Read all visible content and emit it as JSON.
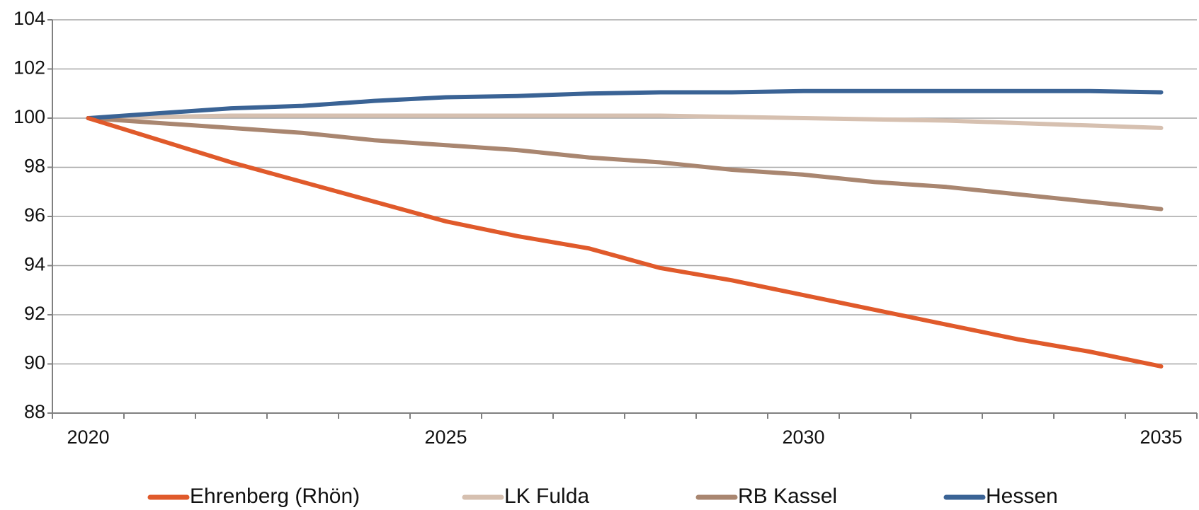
{
  "chart_data": {
    "type": "line",
    "x": [
      2020,
      2021,
      2022,
      2023,
      2024,
      2025,
      2026,
      2027,
      2028,
      2029,
      2030,
      2031,
      2032,
      2033,
      2034,
      2035
    ],
    "xlim": [
      2019.5,
      2035.5
    ],
    "xticks": [
      2020,
      2025,
      2030,
      2035
    ],
    "ylim": [
      88,
      104
    ],
    "yticks": [
      88,
      90,
      92,
      94,
      96,
      98,
      100,
      102,
      104
    ],
    "grid": true,
    "legend": "bottom",
    "series": [
      {
        "name": "Ehrenberg (Rhön)",
        "color": "#e05a2b",
        "values": [
          100,
          99.1,
          98.2,
          97.4,
          96.6,
          95.8,
          95.2,
          94.7,
          93.9,
          93.4,
          92.8,
          92.2,
          91.6,
          91.0,
          90.5,
          89.9
        ]
      },
      {
        "name": "LK Fulda",
        "color": "#d6c0b0",
        "values": [
          100,
          100.05,
          100.1,
          100.1,
          100.1,
          100.1,
          100.1,
          100.1,
          100.1,
          100.05,
          100,
          99.95,
          99.9,
          99.8,
          99.7,
          99.6
        ]
      },
      {
        "name": "RB Kassel",
        "color": "#a98670",
        "values": [
          100,
          99.8,
          99.6,
          99.4,
          99.1,
          98.9,
          98.7,
          98.4,
          98.2,
          97.9,
          97.7,
          97.4,
          97.2,
          96.9,
          96.6,
          96.3
        ]
      },
      {
        "name": "Hessen",
        "color": "#3a6395",
        "values": [
          100,
          100.2,
          100.4,
          100.5,
          100.7,
          100.85,
          100.9,
          101.0,
          101.05,
          101.05,
          101.1,
          101.1,
          101.1,
          101.1,
          101.1,
          101.05
        ]
      }
    ]
  }
}
